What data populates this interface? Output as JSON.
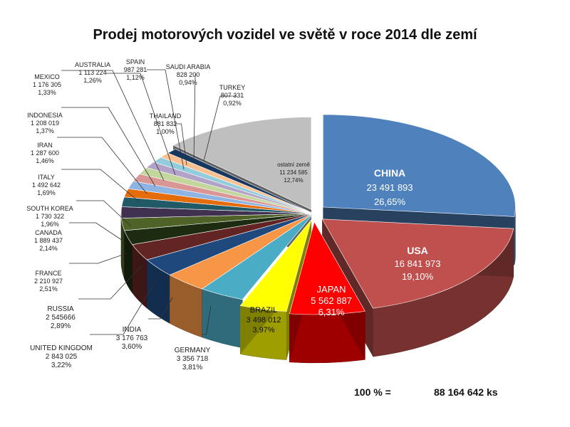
{
  "chart_data": {
    "type": "pie",
    "title": "Prodej   motorových vozidel ve světě v roce 2014 dle zemí",
    "slices": [
      {
        "name": "CHINA",
        "value": "23 491 893",
        "percent": "26,65%",
        "color": "#4F81BD"
      },
      {
        "name": "USA",
        "value": "16 841 973",
        "percent": "19,10%",
        "color": "#C0504D"
      },
      {
        "name": "JAPAN",
        "value": "5 562 887",
        "percent": "6,31%",
        "color": "#FF0000"
      },
      {
        "name": "BRAZIL",
        "value": "3 498 012",
        "percent": "3,97%",
        "color": "#FFFF00"
      },
      {
        "name": "GERMANY",
        "value": "3 356 718",
        "percent": "3,81%",
        "color": "#4BACC6"
      },
      {
        "name": "INDIA",
        "value": "3 176 763",
        "percent": "3,60%",
        "color": "#F79646"
      },
      {
        "name": "UNITED KINGDOM",
        "value": "2 843 025",
        "percent": "3,22%",
        "color": "#1F497D"
      },
      {
        "name": "RUSSIA",
        "value": "2 545666",
        "percent": "2,89%",
        "color": "#632523"
      },
      {
        "name": "FRANCE",
        "value": "2 210 927",
        "percent": "2,51%",
        "color": "#1D2C10"
      },
      {
        "name": "CANADA",
        "value": "1 889 437",
        "percent": "2,14%",
        "color": "#4F6228"
      },
      {
        "name": "SOUTH KOREA",
        "value": "1 730 322",
        "percent": "1,96%",
        "color": "#403151"
      },
      {
        "name": "ITALY",
        "value": "1 492 642",
        "percent": "1,69%",
        "color": "#215967"
      },
      {
        "name": "IRAN",
        "value": "1 287 600",
        "percent": "1,46%",
        "color": "#E46C0A"
      },
      {
        "name": "INDONESIA",
        "value": "1 208 019",
        "percent": "1,37%",
        "color": "#8EB4E3"
      },
      {
        "name": "MEXICO",
        "value": "1 176 305",
        "percent": "1,33%",
        "color": "#D99694"
      },
      {
        "name": "AUSTRALIA",
        "value": "1 113 224",
        "percent": "1,26%",
        "color": "#C3D69B"
      },
      {
        "name": "SPAIN",
        "value": "987 281",
        "percent": "1,12%",
        "color": "#B3A2C7"
      },
      {
        "name": "THAILAND",
        "value": "881 832",
        "percent": "1,00%",
        "color": "#93CDDD"
      },
      {
        "name": "SAUDI ARABIA",
        "value": "828 200",
        "percent": "0,94%",
        "color": "#FAC08F"
      },
      {
        "name": "TURKEY",
        "value": "807 331",
        "percent": "0,92%",
        "color": "#17375E"
      },
      {
        "name": "ostatní země",
        "value": "11 234 585",
        "percent": "12,74%",
        "color": "#BFBFBF"
      }
    ],
    "total": {
      "label": "100 % =",
      "value": "88 164 642  ks"
    }
  }
}
